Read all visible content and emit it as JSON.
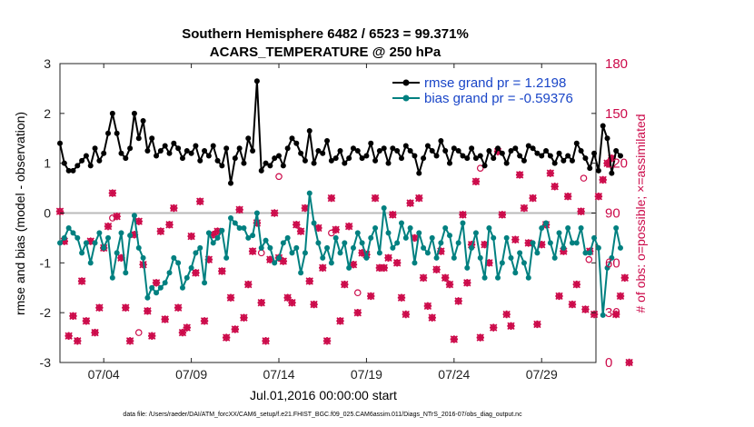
{
  "chart_data": {
    "type": "line",
    "title_line1": "Southern Hemisphere 6482 / 6523 = 99.371%",
    "title_line2": "ACARS_TEMPERATURE @ 250 hPa",
    "ylabel_left": "rmse and bias (model - observation)",
    "ylabel_right": "# of obs: o=possible; ×=assimilated",
    "xlabel": "Jul.01,2016 00:00:00 start",
    "footer": "data file: /Users/raeder/DAI/ATM_forcXX/CAM6_setup/f.e21.FHIST_BGC.f09_025.CAM6assim.011/Diags_NTrS_2016-07/obs_diag_output.nc",
    "x_range": [
      1.5,
      32.1
    ],
    "ylim_left": [
      -3,
      3
    ],
    "ylim_right": [
      0,
      180
    ],
    "left_ticks": [
      "-3",
      "-2",
      "-1",
      "0",
      "1",
      "2",
      "3"
    ],
    "right_ticks": [
      "0",
      "30",
      "60",
      "90",
      "120",
      "150",
      "180"
    ],
    "x_ticks": [
      {
        "x": 4,
        "label": "07/04"
      },
      {
        "x": 9,
        "label": "07/09"
      },
      {
        "x": 14,
        "label": "07/14"
      },
      {
        "x": 19,
        "label": "07/19"
      },
      {
        "x": 24,
        "label": "07/24"
      },
      {
        "x": 29,
        "label": "07/29"
      }
    ],
    "legend": {
      "position": "top-right",
      "entries": [
        "rmse grand pr = 1.2198",
        "bias grand pr = -0.59376"
      ]
    },
    "colors": {
      "rmse": "#000000",
      "bias": "#008080",
      "obs": "#cc0a4a",
      "zero_line": "#bbbbbb"
    },
    "time_start": 1.5,
    "time_step": 0.25,
    "series": [
      {
        "name": "rmse",
        "axis": "left",
        "values": [
          1.4,
          1.0,
          0.85,
          0.85,
          0.95,
          1.05,
          1.15,
          0.95,
          1.3,
          1.05,
          1.2,
          1.6,
          2.0,
          1.6,
          1.2,
          1.1,
          1.3,
          2.0,
          1.5,
          1.85,
          1.25,
          1.5,
          1.15,
          1.25,
          1.35,
          1.2,
          1.4,
          1.3,
          1.1,
          1.25,
          1.2,
          1.35,
          1.05,
          1.25,
          1.15,
          1.35,
          1.05,
          0.95,
          1.3,
          0.6,
          1.1,
          1.3,
          1.0,
          1.5,
          1.25,
          2.65,
          0.85,
          1.0,
          0.95,
          1.1,
          1.15,
          0.95,
          1.3,
          1.5,
          1.4,
          1.2,
          1.05,
          1.65,
          1.0,
          1.25,
          1.2,
          1.45,
          1.05,
          1.1,
          1.25,
          1.0,
          1.1,
          1.3,
          1.25,
          1.1,
          1.15,
          1.4,
          1.05,
          1.25,
          1.3,
          1.0,
          1.3,
          1.25,
          1.1,
          1.35,
          1.25,
          1.15,
          0.8,
          1.1,
          1.35,
          1.25,
          1.15,
          1.45,
          1.25,
          1.0,
          1.3,
          1.25,
          1.15,
          1.1,
          1.3,
          1.1,
          1.15,
          0.95,
          1.25,
          1.1,
          1.3,
          1.2,
          1.0,
          1.25,
          1.3,
          1.15,
          1.05,
          1.35,
          1.3,
          1.2,
          1.15,
          1.25,
          1.15,
          1.0,
          1.2,
          1.05,
          1.15,
          1.05,
          1.4,
          1.25,
          1.1,
          0.9,
          1.2,
          0.85,
          1.75,
          1.5,
          0.8,
          1.25,
          1.15
        ]
      },
      {
        "name": "bias",
        "axis": "left",
        "values": [
          -0.6,
          -0.5,
          -0.3,
          -0.4,
          -0.5,
          -0.8,
          -0.6,
          -1.0,
          -0.6,
          -0.4,
          -0.7,
          -0.5,
          -1.3,
          -0.8,
          -0.4,
          -1.2,
          -0.45,
          -0.05,
          -0.7,
          -0.9,
          -1.7,
          -1.5,
          -1.6,
          -1.5,
          -1.4,
          -1.2,
          -0.9,
          -1.0,
          -1.5,
          -1.3,
          -1.1,
          -0.8,
          -0.7,
          -1.4,
          -0.4,
          -0.6,
          -0.5,
          -0.35,
          -0.9,
          -0.1,
          -0.2,
          -0.3,
          -0.3,
          -0.5,
          -0.45,
          0.0,
          -0.7,
          -0.55,
          -0.7,
          -1.0,
          -0.9,
          -0.6,
          -0.5,
          -0.8,
          -0.7,
          -1.2,
          -0.8,
          0.4,
          -0.2,
          -0.6,
          -0.9,
          -0.7,
          -1.0,
          -0.5,
          -0.8,
          -0.6,
          -1.1,
          -0.7,
          -0.4,
          -0.6,
          -0.9,
          -0.5,
          -0.3,
          -0.8,
          0.1,
          -0.4,
          -0.7,
          -0.6,
          -0.2,
          -0.5,
          -0.3,
          -1.0,
          -0.4,
          -0.7,
          -0.8,
          -0.5,
          -0.9,
          -0.6,
          -0.3,
          -0.45,
          -0.9,
          -0.6,
          -0.2,
          -1.1,
          -0.7,
          -0.4,
          -0.9,
          -1.3,
          -0.3,
          -0.5,
          -1.3,
          -1.0,
          -0.5,
          -0.9,
          -1.2,
          -0.8,
          -1.0,
          -1.3,
          -0.6,
          -0.8,
          -0.3,
          -0.2,
          -0.6,
          -0.9,
          -0.4,
          -0.7,
          -0.3,
          -0.6,
          -0.6,
          -0.3,
          -0.8,
          -0.8,
          -0.5,
          -0.7,
          -2.05,
          -1.1,
          -0.9,
          -0.3,
          -0.7
        ]
      },
      {
        "name": "obs_possible",
        "axis": "right",
        "values": [
          91,
          73,
          16,
          28,
          13,
          49,
          25,
          73,
          18,
          33,
          69,
          82,
          102,
          88,
          63,
          33,
          13,
          77,
          85,
          59,
          31,
          16,
          48,
          79,
          26,
          83,
          93,
          33,
          18,
          21,
          76,
          54,
          97,
          25,
          62,
          77,
          79,
          55,
          15,
          39,
          20,
          92,
          27,
          47,
          67,
          84,
          36,
          13,
          62,
          90,
          63,
          61,
          39,
          36,
          83,
          79,
          93,
          49,
          35,
          81,
          57,
          13,
          99,
          80,
          25,
          47,
          82,
          59,
          30,
          66,
          65,
          40,
          99,
          57,
          57,
          63,
          89,
          60,
          39,
          29,
          96,
          75,
          99,
          51,
          34,
          27,
          56,
          67,
          51,
          47,
          14,
          37,
          89,
          48,
          71,
          109,
          15,
          71,
          60,
          21,
          127,
          89,
          29,
          22,
          74,
          113,
          93,
          72,
          99,
          23,
          71,
          83,
          114,
          106,
          40,
          67,
          100,
          35,
          47,
          91,
          32,
          67,
          29,
          100,
          110,
          120,
          123,
          29,
          40,
          51,
          0
        ]
      },
      {
        "name": "obs_assimilated",
        "axis": "right",
        "values": [
          91,
          73,
          16,
          28,
          13,
          49,
          25,
          73,
          18,
          33,
          69,
          82,
          102,
          88,
          63,
          33,
          13,
          77,
          85,
          59,
          31,
          16,
          48,
          79,
          26,
          83,
          93,
          33,
          18,
          21,
          76,
          54,
          97,
          25,
          62,
          77,
          79,
          55,
          15,
          39,
          20,
          92,
          27,
          47,
          67,
          84,
          36,
          13,
          62,
          90,
          63,
          61,
          39,
          36,
          83,
          79,
          93,
          49,
          35,
          81,
          57,
          13,
          99,
          80,
          25,
          47,
          82,
          59,
          30,
          66,
          65,
          40,
          99,
          57,
          57,
          63,
          89,
          60,
          39,
          29,
          96,
          75,
          99,
          51,
          34,
          27,
          56,
          67,
          51,
          47,
          14,
          37,
          89,
          48,
          71,
          109,
          15,
          71,
          60,
          21,
          127,
          89,
          29,
          22,
          74,
          113,
          93,
          72,
          99,
          23,
          71,
          83,
          114,
          106,
          40,
          67,
          100,
          35,
          47,
          91,
          32,
          67,
          29,
          100,
          110,
          120,
          123,
          29,
          40,
          51,
          0
        ]
      }
    ],
    "extra_possible_markers": [
      {
        "t": 4.5,
        "value": 87
      },
      {
        "t": 6.0,
        "value": 18
      },
      {
        "t": 13.0,
        "value": 66
      },
      {
        "t": 14.0,
        "value": 112
      },
      {
        "t": 17.0,
        "value": 78
      },
      {
        "t": 18.5,
        "value": 42
      },
      {
        "t": 25.5,
        "value": 117
      },
      {
        "t": 31.7,
        "value": 62
      },
      {
        "t": 31.4,
        "value": 111
      }
    ]
  }
}
